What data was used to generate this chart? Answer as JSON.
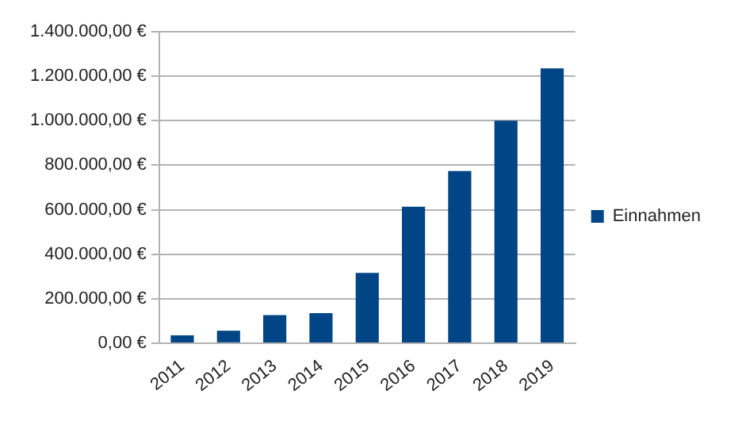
{
  "chart_data": {
    "type": "bar",
    "categories": [
      "2011",
      "2012",
      "2013",
      "2014",
      "2015",
      "2016",
      "2017",
      "2018",
      "2019"
    ],
    "series": [
      {
        "name": "Einnahmen",
        "color": "#004586",
        "values": [
          35000,
          56000,
          126000,
          135000,
          316000,
          613000,
          774000,
          1000000,
          1235000
        ]
      }
    ],
    "ylim": [
      0,
      1400000
    ],
    "yticks": [
      {
        "value": 0,
        "label": "0,00 €"
      },
      {
        "value": 200000,
        "label": "200.000,00 €"
      },
      {
        "value": 400000,
        "label": "400.000,00 €"
      },
      {
        "value": 600000,
        "label": "600.000,00 €"
      },
      {
        "value": 800000,
        "label": "800.000,00 €"
      },
      {
        "value": 1000000,
        "label": "1.000.000,00 €"
      },
      {
        "value": 1200000,
        "label": "1.200.000,00 €"
      },
      {
        "value": 1400000,
        "label": "1.400.000,00 €"
      }
    ],
    "grid": "y",
    "legend": "right"
  }
}
